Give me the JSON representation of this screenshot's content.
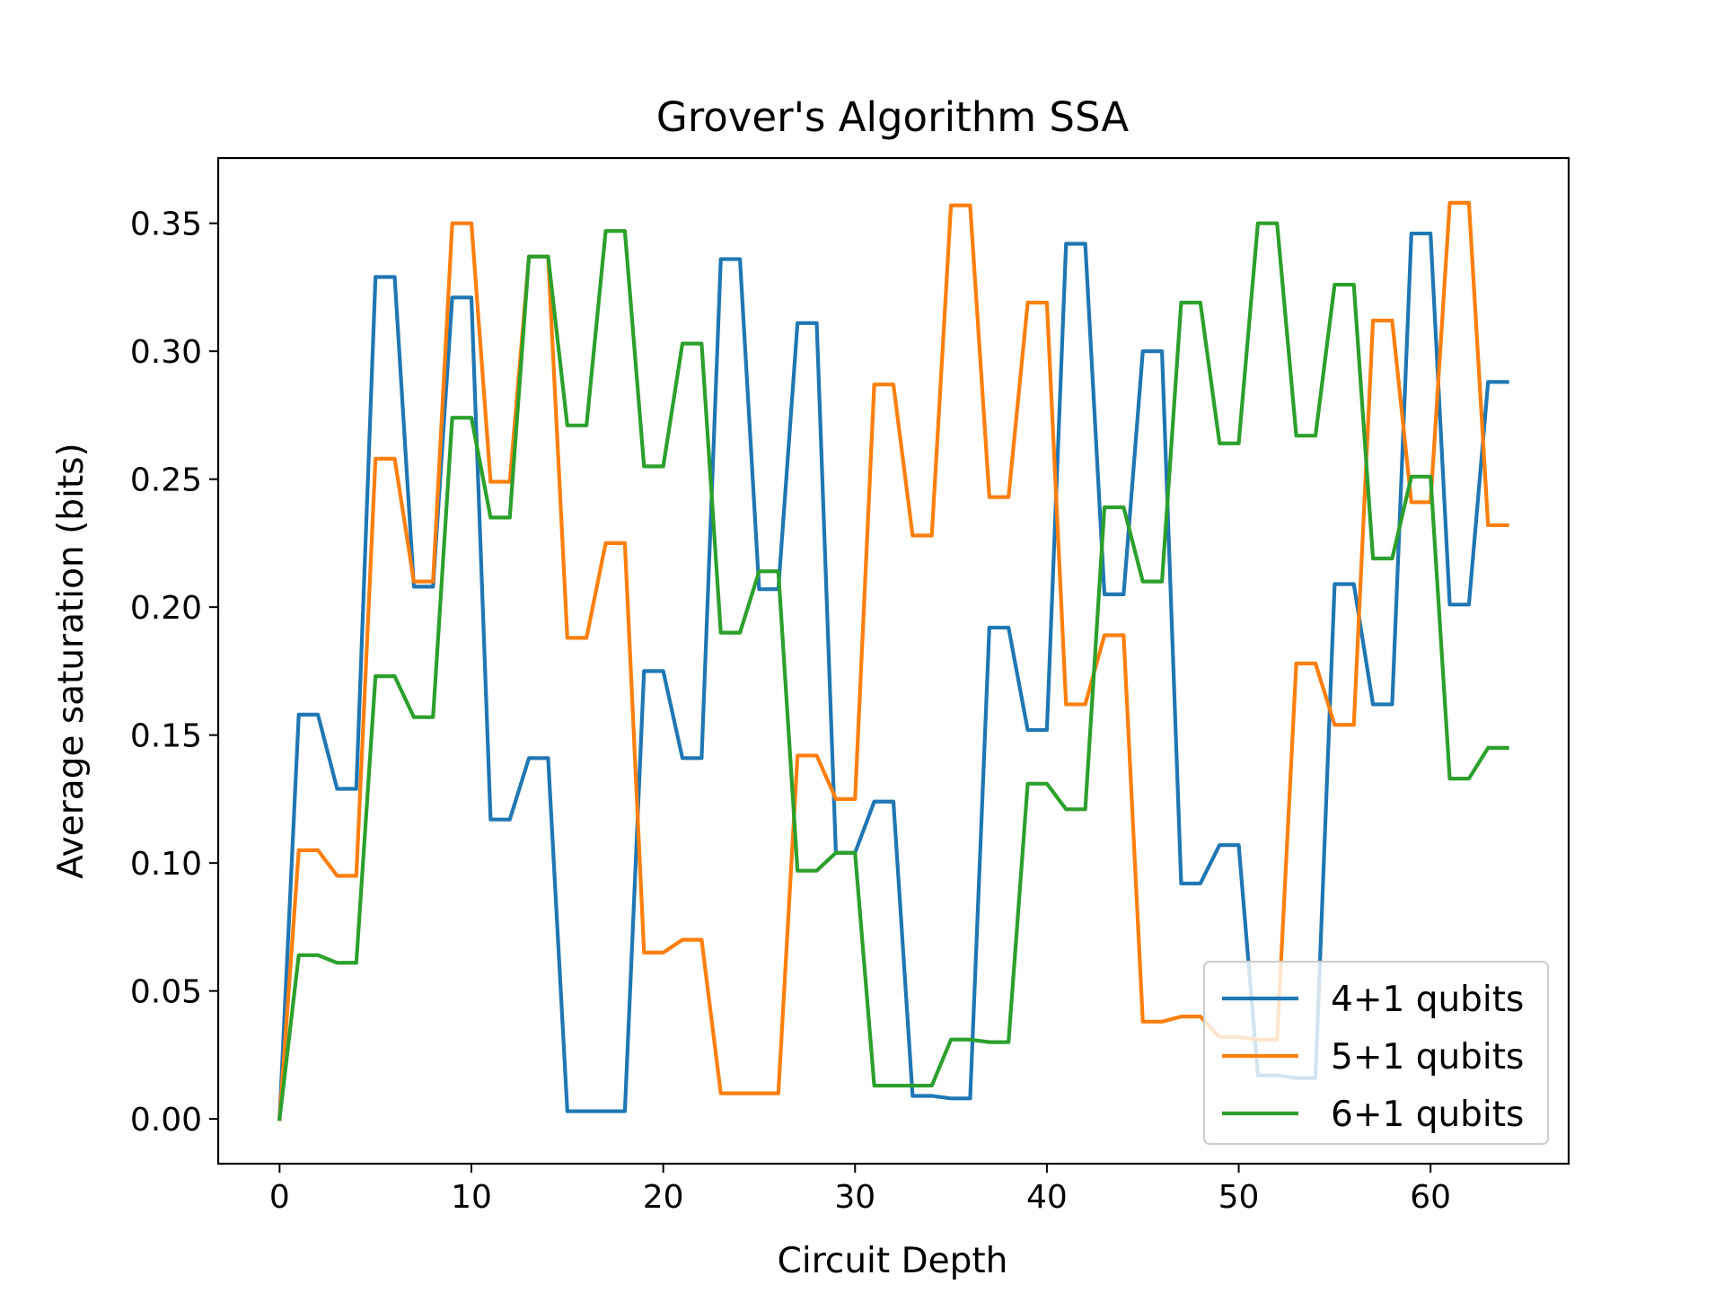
{
  "chart_data": {
    "type": "line",
    "title": "Grover's Algorithm SSA",
    "xlabel": "Circuit Depth",
    "ylabel": "Average saturation (bits)",
    "xlim": [
      -3.2,
      67.2
    ],
    "ylim": [
      -0.0175,
      0.3755
    ],
    "xticks": [
      0,
      10,
      20,
      30,
      40,
      50,
      60
    ],
    "xtick_labels": [
      "0",
      "10",
      "20",
      "30",
      "40",
      "50",
      "60"
    ],
    "yticks": [
      0,
      0.05,
      0.1,
      0.15,
      0.2,
      0.25,
      0.3,
      0.35
    ],
    "ytick_labels": [
      "0.00",
      "0.05",
      "0.10",
      "0.15",
      "0.20",
      "0.25",
      "0.30",
      "0.35"
    ],
    "grid": false,
    "legend_position": "lower right",
    "x": [
      0,
      1,
      2,
      3,
      4,
      5,
      6,
      7,
      8,
      9,
      10,
      11,
      12,
      13,
      14,
      15,
      16,
      17,
      18,
      19,
      20,
      21,
      22,
      23,
      24,
      25,
      26,
      27,
      28,
      29,
      30,
      31,
      32,
      33,
      34,
      35,
      36,
      37,
      38,
      39,
      40,
      41,
      42,
      43,
      44,
      45,
      46,
      47,
      48,
      49,
      50,
      51,
      52,
      53,
      54,
      55,
      56,
      57,
      58,
      59,
      60,
      61,
      62,
      63,
      64
    ],
    "series": [
      {
        "name": "4+1 qubits",
        "color": "#1f77b4",
        "values": [
          0,
          0.158,
          0.158,
          0.129,
          0.129,
          0.329,
          0.329,
          0.208,
          0.208,
          0.321,
          0.321,
          0.117,
          0.117,
          0.141,
          0.141,
          0.003,
          0.003,
          0.003,
          0.003,
          0.175,
          0.175,
          0.141,
          0.141,
          0.336,
          0.336,
          0.207,
          0.207,
          0.311,
          0.311,
          0.104,
          0.104,
          0.124,
          0.124,
          0.009,
          0.009,
          0.008,
          0.008,
          0.192,
          0.192,
          0.152,
          0.152,
          0.342,
          0.342,
          0.205,
          0.205,
          0.3,
          0.3,
          0.092,
          0.092,
          0.107,
          0.107,
          0.017,
          0.017,
          0.016,
          0.016,
          0.209,
          0.209,
          0.162,
          0.162,
          0.346,
          0.346,
          0.201,
          0.201,
          0.288,
          0.288
        ]
      },
      {
        "name": "5+1 qubits",
        "color": "#ff7f0e",
        "values": [
          0,
          0.105,
          0.105,
          0.095,
          0.095,
          0.258,
          0.258,
          0.21,
          0.21,
          0.35,
          0.35,
          0.249,
          0.249,
          0.337,
          0.337,
          0.188,
          0.188,
          0.225,
          0.225,
          0.065,
          0.065,
          0.07,
          0.07,
          0.01,
          0.01,
          0.01,
          0.01,
          0.142,
          0.142,
          0.125,
          0.125,
          0.287,
          0.287,
          0.228,
          0.228,
          0.357,
          0.357,
          0.243,
          0.243,
          0.319,
          0.319,
          0.162,
          0.162,
          0.189,
          0.189,
          0.038,
          0.038,
          0.04,
          0.04,
          0.032,
          0.032,
          0.031,
          0.031,
          0.178,
          0.178,
          0.154,
          0.154,
          0.312,
          0.312,
          0.241,
          0.241,
          0.358,
          0.358,
          0.232,
          0.232
        ]
      },
      {
        "name": "6+1 qubits",
        "color": "#2ca02c",
        "values": [
          0,
          0.064,
          0.064,
          0.061,
          0.061,
          0.173,
          0.173,
          0.157,
          0.157,
          0.274,
          0.274,
          0.235,
          0.235,
          0.337,
          0.337,
          0.271,
          0.271,
          0.347,
          0.347,
          0.255,
          0.255,
          0.303,
          0.303,
          0.19,
          0.19,
          0.214,
          0.214,
          0.097,
          0.097,
          0.104,
          0.104,
          0.013,
          0.013,
          0.013,
          0.013,
          0.031,
          0.031,
          0.03,
          0.03,
          0.131,
          0.131,
          0.121,
          0.121,
          0.239,
          0.239,
          0.21,
          0.21,
          0.319,
          0.319,
          0.264,
          0.264,
          0.35,
          0.35,
          0.267,
          0.267,
          0.326,
          0.326,
          0.219,
          0.219,
          0.251,
          0.251,
          0.133,
          0.133,
          0.145,
          0.145
        ]
      }
    ]
  }
}
